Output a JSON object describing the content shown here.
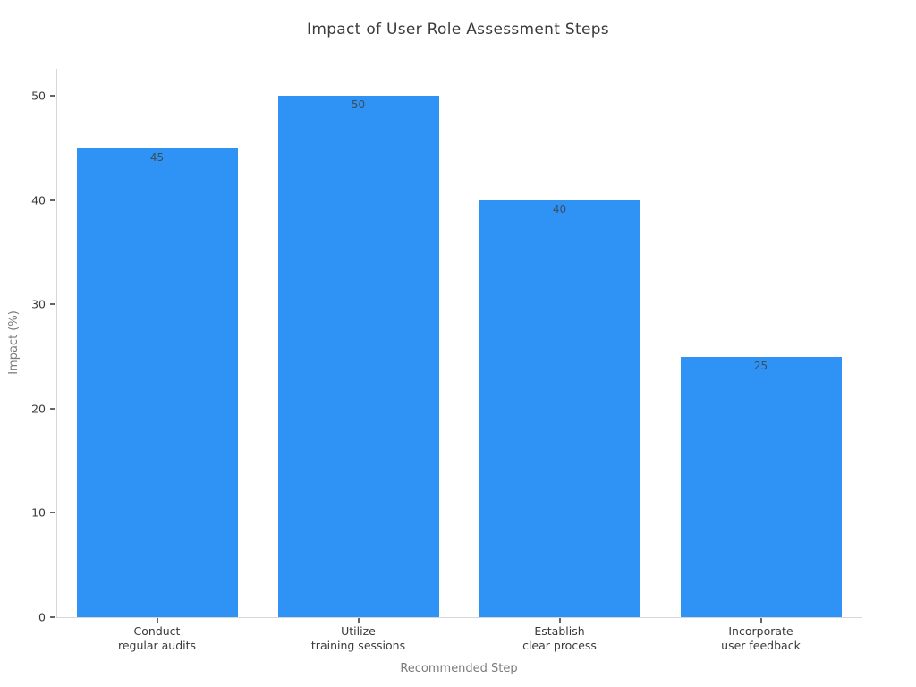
{
  "chart_data": {
    "type": "bar",
    "title": "Impact of User Role Assessment Steps",
    "xlabel": "Recommended Step",
    "ylabel": "Impact (%)",
    "categories": [
      "Conduct\nregular audits",
      "Utilize\ntraining sessions",
      "Establish\nclear process",
      "Incorporate\nuser feedback"
    ],
    "values": [
      45,
      50,
      40,
      25
    ],
    "value_labels": [
      "45",
      "50",
      "40",
      "25"
    ],
    "yticks": [
      0,
      10,
      20,
      30,
      40,
      50
    ],
    "ylim": [
      0,
      52.6
    ],
    "grid": false,
    "legend": false,
    "colors": {
      "bar_fill": "#2e93f5",
      "value_label": "#3f4d59",
      "tick_label": "#3a3a3a",
      "axis_title": "#7b7b7b",
      "spine": "#d6d6d6",
      "title": "#3a3a3a"
    }
  }
}
